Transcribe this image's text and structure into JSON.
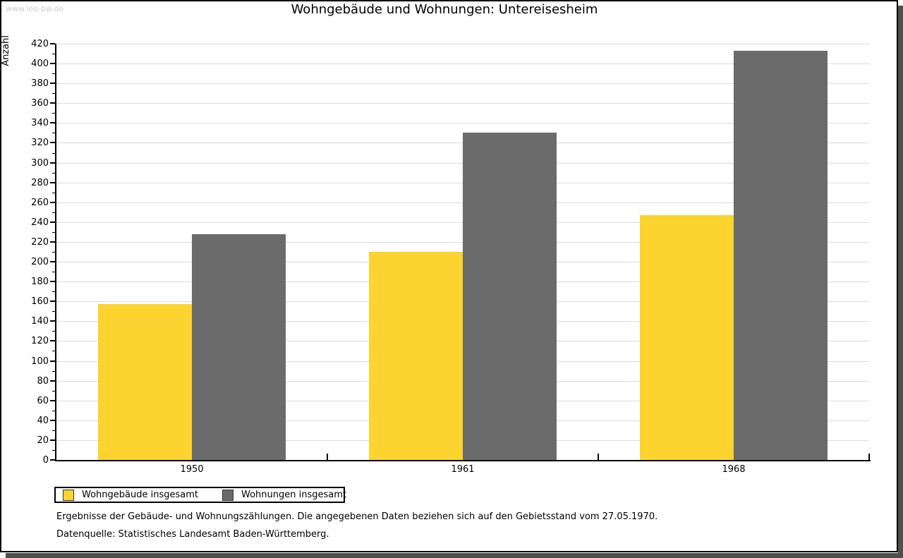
{
  "window": {
    "watermark": "www.leo-bw.de"
  },
  "title": "Wohngebäude und Wohnungen: Untereisesheim",
  "chart_data": {
    "type": "bar",
    "title": "Wohngebäude und Wohnungen: Untereisesheim",
    "categories": [
      "1950",
      "1961",
      "1968"
    ],
    "series": [
      {
        "name": "Wohngebäude insgesamt",
        "color": "#FCD32F",
        "values": [
          157,
          210,
          247
        ]
      },
      {
        "name": "Wohnungen insgesamt",
        "color": "#6B6B6B",
        "values": [
          228,
          330,
          413
        ]
      }
    ],
    "xlabel": "",
    "ylabel": "Anzahl",
    "ylim": [
      0,
      420
    ],
    "ytick_step": 20,
    "yminor_step": 10,
    "grid": true,
    "legend_position": "bottom-left"
  },
  "footnotes": {
    "line1": "Ergebnisse der Gebäude- und Wohnungszählungen. Die angegebenen Daten beziehen sich auf den Gebietsstand vom 27.05.1970.",
    "line2": "Datenquelle: Statistisches Landesamt Baden-Württemberg."
  },
  "colors": {
    "bar_yellow": "#FCD32F",
    "bar_gray": "#6B6B6B",
    "gridline": "#DCDCDC",
    "watermark": "#CCCCCC",
    "axis": "#000000",
    "frame_shadow": "#4F4F4F"
  }
}
